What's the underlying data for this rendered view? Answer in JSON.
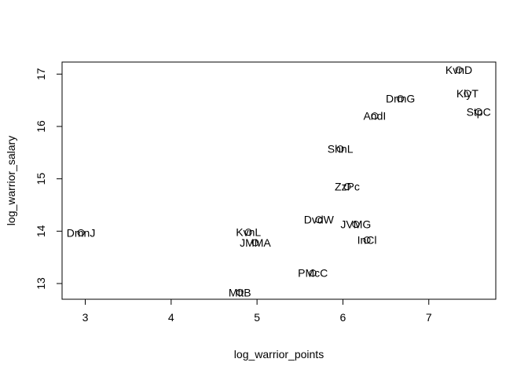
{
  "chart_data": {
    "type": "scatter",
    "title": "",
    "xlabel": "log_warrior_points",
    "ylabel": "log_warrior_salary",
    "xlim": [
      2.73,
      7.78
    ],
    "ylim": [
      12.7,
      17.23
    ],
    "xticks": [
      3,
      4,
      5,
      6,
      7
    ],
    "yticks": [
      13,
      14,
      15,
      16,
      17
    ],
    "grid": false,
    "legend": "none",
    "marker": "open-circle",
    "series": [
      {
        "points": [
          {
            "label": "DmnJ",
            "x": 2.95,
            "y": 13.97
          },
          {
            "label": "KvnL",
            "x": 4.9,
            "y": 13.98
          },
          {
            "label": "JMMA",
            "x": 4.98,
            "y": 13.78
          },
          {
            "label": "MttB",
            "x": 4.8,
            "y": 12.83
          },
          {
            "label": "PMcC",
            "x": 5.65,
            "y": 13.2
          },
          {
            "label": "DvdW",
            "x": 5.72,
            "y": 14.22
          },
          {
            "label": "JVMG",
            "x": 6.15,
            "y": 14.13
          },
          {
            "label": "InCl",
            "x": 6.28,
            "y": 13.83
          },
          {
            "label": "ZzPc",
            "x": 6.05,
            "y": 14.85
          },
          {
            "label": "ShnL",
            "x": 5.97,
            "y": 15.57
          },
          {
            "label": "AndI",
            "x": 6.37,
            "y": 16.2
          },
          {
            "label": "DrmG",
            "x": 6.67,
            "y": 16.53
          },
          {
            "label": "KvnD",
            "x": 7.35,
            "y": 17.08
          },
          {
            "label": "KlyT",
            "x": 7.45,
            "y": 16.63
          },
          {
            "label": "StpC",
            "x": 7.58,
            "y": 16.28
          }
        ]
      }
    ]
  }
}
